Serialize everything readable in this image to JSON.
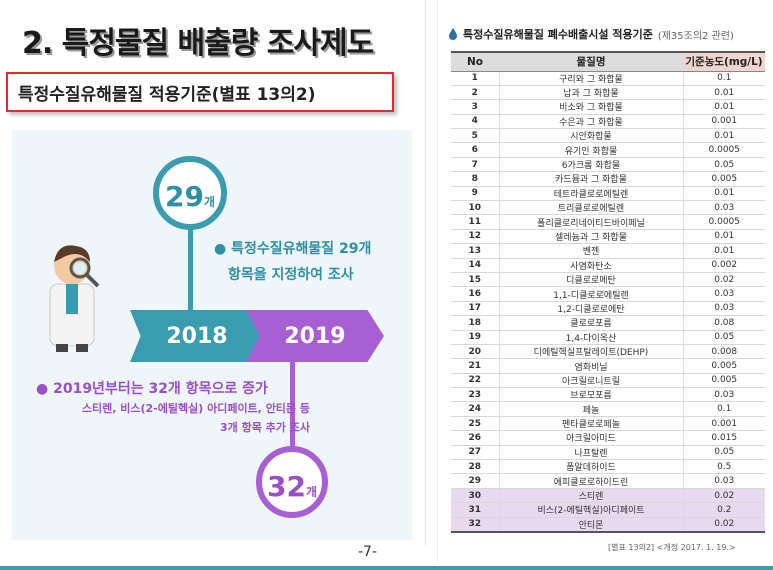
{
  "slide": {
    "title": "2. 특정물질 배출량 조사제도",
    "subtitle": "특정수질유해물질 적용기준(별표 13의2)",
    "page_number": "-7-"
  },
  "timeline": {
    "circle_top": {
      "number": "29",
      "unit": "개"
    },
    "circle_bottom": {
      "number": "32",
      "unit": "개"
    },
    "arrow_left_year": "2018",
    "arrow_right_year": "2019",
    "note_29": {
      "line1": "특정수질유해물질 29개",
      "line2": "항목을 지정하여 조사"
    },
    "note_32": {
      "line1": "2019년부터는 32개 항목으로 증가",
      "line2": "스티렌, 비스(2-에틸헥실) 아디페이트, 안티몬 등",
      "line3": "3개 항목 추가 조사"
    },
    "colors": {
      "teal": "#3a9cb0",
      "purple": "#a95fd4"
    }
  },
  "table": {
    "heading": "특정수질유해물질 폐수배출시설 적용기준",
    "heading_ref": "(제35조의2 관련)",
    "columns": [
      "No",
      "물질명",
      "기준농도(mg/L)"
    ],
    "rows": [
      {
        "no": "1",
        "name": "구리와 그 화합물",
        "conc": "0.1"
      },
      {
        "no": "2",
        "name": "납과 그 화합물",
        "conc": "0.01"
      },
      {
        "no": "3",
        "name": "비소와 그 화합물",
        "conc": "0.01"
      },
      {
        "no": "4",
        "name": "수은과 그 화합물",
        "conc": "0.001"
      },
      {
        "no": "5",
        "name": "시안화합물",
        "conc": "0.01"
      },
      {
        "no": "6",
        "name": "유기인 화합물",
        "conc": "0.0005"
      },
      {
        "no": "7",
        "name": "6가크롬 화합물",
        "conc": "0.05"
      },
      {
        "no": "8",
        "name": "카드뮴과 그 화합물",
        "conc": "0.005"
      },
      {
        "no": "9",
        "name": "테트라클로로에틸렌",
        "conc": "0.01"
      },
      {
        "no": "10",
        "name": "트리클로로에틸렌",
        "conc": "0.03"
      },
      {
        "no": "11",
        "name": "폴리클로리네이티드바이페닐",
        "conc": "0.0005"
      },
      {
        "no": "12",
        "name": "셀레늄과 그 화합물",
        "conc": "0.01"
      },
      {
        "no": "13",
        "name": "벤젠",
        "conc": "0.01"
      },
      {
        "no": "14",
        "name": "사염화탄소",
        "conc": "0.002"
      },
      {
        "no": "15",
        "name": "디클로로메탄",
        "conc": "0.02"
      },
      {
        "no": "16",
        "name": "1,1-디클로로에틸렌",
        "conc": "0.03"
      },
      {
        "no": "17",
        "name": "1,2-디클로로에탄",
        "conc": "0.03"
      },
      {
        "no": "18",
        "name": "클로로포름",
        "conc": "0.08"
      },
      {
        "no": "19",
        "name": "1,4-다이옥산",
        "conc": "0.05"
      },
      {
        "no": "20",
        "name": "디에틸헥실프탈레이트(DEHP)",
        "conc": "0.008"
      },
      {
        "no": "21",
        "name": "염화비닐",
        "conc": "0.005"
      },
      {
        "no": "22",
        "name": "아크릴로니트릴",
        "conc": "0.005"
      },
      {
        "no": "23",
        "name": "브로모포름",
        "conc": "0.03"
      },
      {
        "no": "24",
        "name": "페놀",
        "conc": "0.1"
      },
      {
        "no": "25",
        "name": "펜타클로로페놀",
        "conc": "0.001"
      },
      {
        "no": "26",
        "name": "아크릴아미드",
        "conc": "0.015"
      },
      {
        "no": "27",
        "name": "나프탈렌",
        "conc": "0.05"
      },
      {
        "no": "28",
        "name": "폼알데하이드",
        "conc": "0.5"
      },
      {
        "no": "29",
        "name": "에피클로로하이드린",
        "conc": "0.03"
      },
      {
        "no": "30",
        "name": "스티렌",
        "conc": "0.02",
        "added": true
      },
      {
        "no": "31",
        "name": "비스(2-에틸헥실)아디페이트",
        "conc": "0.2",
        "added": true
      },
      {
        "no": "32",
        "name": "안티몬",
        "conc": "0.02",
        "added": true
      }
    ],
    "note": "[별표 13의2] <개정 2017. 1. 19.>",
    "added_row_color": "#e9d9ee"
  }
}
